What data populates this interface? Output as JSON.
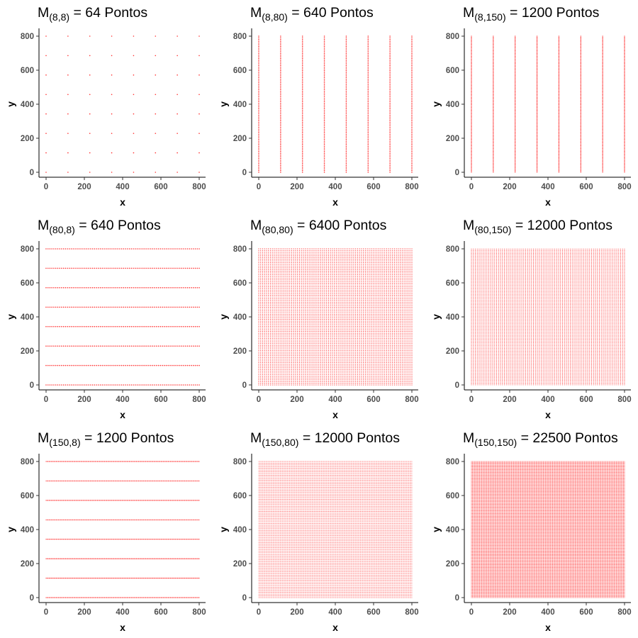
{
  "chart_data": [
    {
      "type": "scatter",
      "title_main": "M",
      "title_sub": "(8,8)",
      "title_rest": " = 64  Pontos",
      "nx": 8,
      "ny": 8,
      "xlabel": "x",
      "ylabel": "y",
      "xlim": [
        0,
        800
      ],
      "ylim": [
        0,
        800
      ],
      "xticks": [
        "0",
        "200",
        "400",
        "600",
        "800"
      ],
      "yticks": [
        "0",
        "200",
        "400",
        "600",
        "800"
      ],
      "color": "#ff0000"
    },
    {
      "type": "scatter",
      "title_main": "M",
      "title_sub": "(8,80)",
      "title_rest": " = 640  Pontos",
      "nx": 8,
      "ny": 80,
      "xlabel": "x",
      "ylabel": "y",
      "xlim": [
        0,
        800
      ],
      "ylim": [
        0,
        800
      ],
      "xticks": [
        "0",
        "200",
        "400",
        "600",
        "800"
      ],
      "yticks": [
        "0",
        "200",
        "400",
        "600",
        "800"
      ],
      "color": "#ff0000"
    },
    {
      "type": "scatter",
      "title_main": "M",
      "title_sub": "(8,150)",
      "title_rest": " = 1200  Pontos",
      "nx": 8,
      "ny": 150,
      "xlabel": "x",
      "ylabel": "y",
      "xlim": [
        0,
        800
      ],
      "ylim": [
        0,
        800
      ],
      "xticks": [
        "0",
        "200",
        "400",
        "600",
        "800"
      ],
      "yticks": [
        "0",
        "200",
        "400",
        "600",
        "800"
      ],
      "color": "#ff0000"
    },
    {
      "type": "scatter",
      "title_main": "M",
      "title_sub": "(80,8)",
      "title_rest": " = 640  Pontos",
      "nx": 80,
      "ny": 8,
      "xlabel": "x",
      "ylabel": "y",
      "xlim": [
        0,
        800
      ],
      "ylim": [
        0,
        800
      ],
      "xticks": [
        "0",
        "200",
        "400",
        "600",
        "800"
      ],
      "yticks": [
        "0",
        "200",
        "400",
        "600",
        "800"
      ],
      "color": "#ff0000"
    },
    {
      "type": "scatter",
      "title_main": "M",
      "title_sub": "(80,80)",
      "title_rest": " = 6400  Pontos",
      "nx": 80,
      "ny": 80,
      "xlabel": "x",
      "ylabel": "y",
      "xlim": [
        0,
        800
      ],
      "ylim": [
        0,
        800
      ],
      "xticks": [
        "0",
        "200",
        "400",
        "600",
        "800"
      ],
      "yticks": [
        "0",
        "200",
        "400",
        "600",
        "800"
      ],
      "color": "#ff0000"
    },
    {
      "type": "scatter",
      "title_main": "M",
      "title_sub": "(80,150)",
      "title_rest": " = 12000  Pontos",
      "nx": 80,
      "ny": 150,
      "xlabel": "x",
      "ylabel": "y",
      "xlim": [
        0,
        800
      ],
      "ylim": [
        0,
        800
      ],
      "xticks": [
        "0",
        "200",
        "400",
        "600",
        "800"
      ],
      "yticks": [
        "0",
        "200",
        "400",
        "600",
        "800"
      ],
      "color": "#ff0000"
    },
    {
      "type": "scatter",
      "title_main": "M",
      "title_sub": "(150,8)",
      "title_rest": " = 1200  Pontos",
      "nx": 150,
      "ny": 8,
      "xlabel": "x",
      "ylabel": "y",
      "xlim": [
        0,
        800
      ],
      "ylim": [
        0,
        800
      ],
      "xticks": [
        "0",
        "200",
        "400",
        "600",
        "800"
      ],
      "yticks": [
        "0",
        "200",
        "400",
        "600",
        "800"
      ],
      "color": "#ff0000"
    },
    {
      "type": "scatter",
      "title_main": "M",
      "title_sub": "(150,80)",
      "title_rest": " = 12000  Pontos",
      "nx": 150,
      "ny": 80,
      "xlabel": "x",
      "ylabel": "y",
      "xlim": [
        0,
        800
      ],
      "ylim": [
        0,
        800
      ],
      "xticks": [
        "0",
        "200",
        "400",
        "600",
        "800"
      ],
      "yticks": [
        "0",
        "200",
        "400",
        "600",
        "800"
      ],
      "color": "#ff0000"
    },
    {
      "type": "scatter",
      "title_main": "M",
      "title_sub": "(150,150)",
      "title_rest": " = 22500  Pontos",
      "nx": 150,
      "ny": 150,
      "xlabel": "x",
      "ylabel": "y",
      "xlim": [
        0,
        800
      ],
      "ylim": [
        0,
        800
      ],
      "xticks": [
        "0",
        "200",
        "400",
        "600",
        "800"
      ],
      "yticks": [
        "0",
        "200",
        "400",
        "600",
        "800"
      ],
      "color": "#ff0000"
    }
  ]
}
